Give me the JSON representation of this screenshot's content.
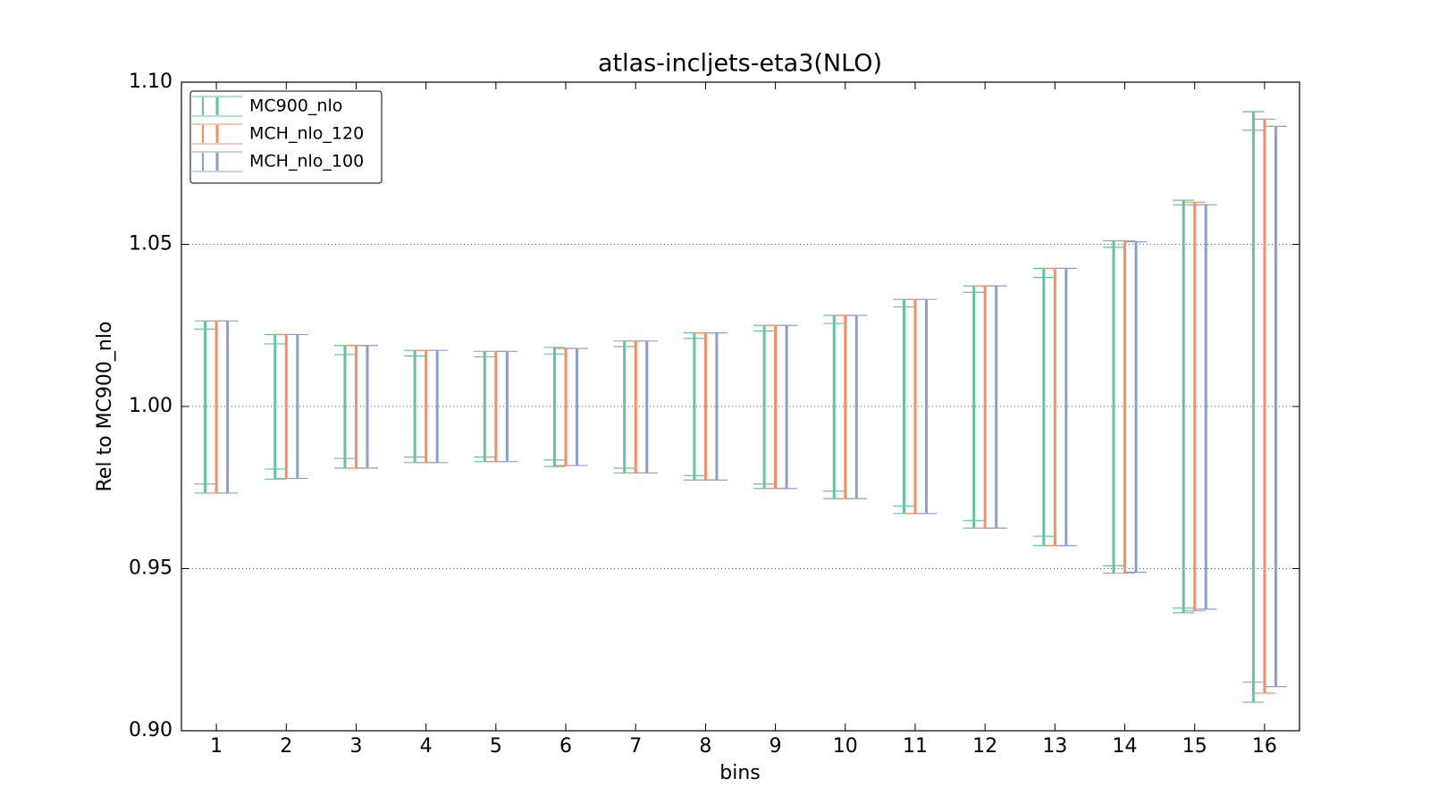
{
  "chart_data": {
    "type": "errorbar",
    "title": "atlas-incljets-eta3(NLO)",
    "x_label": "bins",
    "y_label": "Rel to MC900_nlo",
    "x": [
      1,
      2,
      3,
      4,
      5,
      6,
      7,
      8,
      9,
      10,
      11,
      12,
      13,
      14,
      15,
      16
    ],
    "xlim": [
      0.5,
      16.5
    ],
    "xticks": [
      1,
      2,
      3,
      4,
      5,
      6,
      7,
      8,
      9,
      10,
      11,
      12,
      13,
      14,
      15,
      16
    ],
    "ylim": [
      0.9,
      1.1
    ],
    "yticks": [
      {
        "value": 0.9,
        "label": "0.90"
      },
      {
        "value": 0.95,
        "label": "0.95"
      },
      {
        "value": 1,
        "label": "1.00"
      },
      {
        "value": 1.05,
        "label": "1.05"
      },
      {
        "value": 1.1,
        "label": "1.10"
      }
    ],
    "grid": true,
    "legend": "upper left",
    "series": [
      {
        "name": "MC900_nlo",
        "color": "#66c2a5",
        "low": [
          0.9733,
          0.9776,
          0.981,
          0.9827,
          0.983,
          0.9815,
          0.9795,
          0.9773,
          0.9747,
          0.9716,
          0.967,
          0.9625,
          0.9571,
          0.9486,
          0.9364,
          0.9088
        ],
        "high": [
          1.0264,
          1.0222,
          1.0188,
          1.0173,
          1.017,
          1.0182,
          1.0202,
          1.0227,
          1.025,
          1.0281,
          1.033,
          1.0372,
          1.0426,
          1.0511,
          1.0636,
          1.0909
        ],
        "inner_low": [
          0.9761,
          0.9807,
          0.984,
          0.9844,
          0.9844,
          0.9835,
          0.981,
          0.9787,
          0.9761,
          0.9739,
          0.9693,
          0.9648,
          0.96,
          0.9509,
          0.9378,
          0.915
        ],
        "inner_high": [
          1.0239,
          1.0193,
          1.016,
          1.0156,
          1.0153,
          1.0162,
          1.0185,
          1.021,
          1.0233,
          1.0256,
          1.0307,
          1.0352,
          1.0398,
          1.0491,
          1.0622,
          1.0852
        ]
      },
      {
        "name": "MCH_nlo_120",
        "color": "#fc8d62",
        "low": [
          0.9733,
          0.9778,
          0.981,
          0.9827,
          0.983,
          0.9818,
          0.9795,
          0.9773,
          0.9747,
          0.9716,
          0.967,
          0.9625,
          0.9571,
          0.9486,
          0.937,
          0.9116
        ],
        "high": [
          1.0264,
          1.0222,
          1.0188,
          1.0173,
          1.017,
          1.0179,
          1.0202,
          1.0227,
          1.025,
          1.0281,
          1.033,
          1.0372,
          1.0426,
          1.0511,
          1.063,
          1.0886
        ]
      },
      {
        "name": "MCH_nlo_100",
        "color": "#8da0cb",
        "low": [
          0.9733,
          0.9778,
          0.981,
          0.9827,
          0.983,
          0.9818,
          0.9795,
          0.9773,
          0.9747,
          0.9716,
          0.967,
          0.9625,
          0.9571,
          0.9489,
          0.9375,
          0.9136
        ],
        "high": [
          1.0264,
          1.0222,
          1.0188,
          1.0173,
          1.017,
          1.0179,
          1.0202,
          1.0227,
          1.025,
          1.0281,
          1.033,
          1.0372,
          1.0426,
          1.0508,
          1.0622,
          1.0864
        ]
      }
    ]
  }
}
